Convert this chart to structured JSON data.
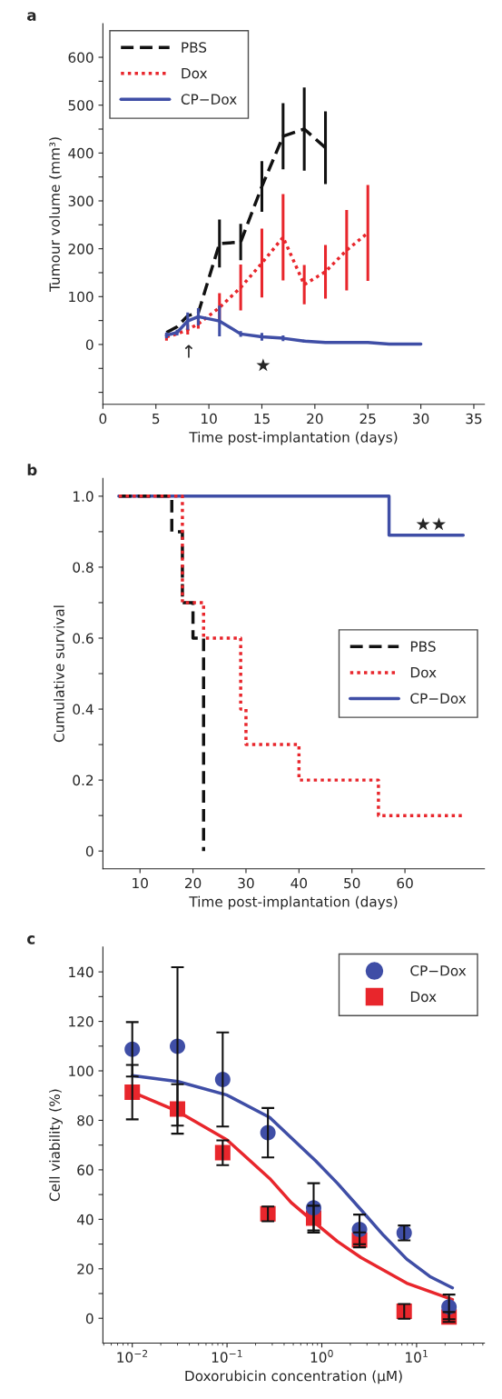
{
  "chart_data": [
    {
      "type": "line",
      "title": "a",
      "xlabel": "Time post-implantation (days)",
      "ylabel": "Tumour volume (mm³)",
      "xlim": [
        0,
        36
      ],
      "ylim": [
        -125,
        670
      ],
      "xticks": [
        0,
        5,
        10,
        15,
        20,
        25,
        30,
        35
      ],
      "yticks": [
        {
          "value": -100,
          "label": null
        },
        {
          "value": -50,
          "label": null
        },
        0,
        {
          "value": 50,
          "label": null
        },
        100,
        {
          "value": 150,
          "label": null
        },
        200,
        {
          "value": 250,
          "label": null
        },
        300,
        {
          "value": 350,
          "label": null
        },
        400,
        {
          "value": 450,
          "label": null
        },
        500,
        {
          "value": 550,
          "label": null
        },
        600
      ],
      "legend": "top left",
      "annotations": [
        "↑",
        "★"
      ],
      "series": [
        {
          "name": "PBS",
          "color": "#111111",
          "line_style": "dashed",
          "x": [
            6,
            7,
            8,
            9,
            11,
            13,
            15,
            17,
            19,
            21
          ],
          "values": [
            25,
            37,
            60,
            66,
            211,
            214,
            330,
            435,
            450,
            411
          ],
          "errors": [
            null,
            null,
            null,
            null,
            50,
            38,
            53,
            69,
            87,
            76
          ]
        },
        {
          "name": "Dox",
          "color": "#e8262c",
          "line_style": "dotted",
          "x": [
            6,
            7,
            8,
            9,
            11,
            13,
            15,
            17,
            19,
            21,
            23,
            25
          ],
          "values": [
            16,
            22,
            31,
            43,
            77,
            119,
            170,
            224,
            125,
            152,
            197,
            233
          ],
          "errors": [
            8,
            null,
            10,
            10,
            30,
            48,
            72,
            90,
            41,
            56,
            84,
            100
          ]
        },
        {
          "name": "CP−Dox",
          "color": "#3f4ea6",
          "line_style": "solid",
          "x": [
            6,
            7,
            8,
            9,
            11,
            13,
            15,
            17,
            19,
            21,
            23,
            25,
            27,
            30
          ],
          "values": [
            19,
            25,
            49,
            58,
            49,
            22,
            16,
            13,
            7,
            4,
            4,
            4,
            1,
            1
          ],
          "errors": [
            6,
            6,
            18,
            18,
            32,
            6,
            8,
            6,
            3,
            null,
            null,
            null,
            null,
            null
          ]
        }
      ]
    },
    {
      "type": "step",
      "title": "b",
      "xlabel": "Time post-implantation (days)",
      "ylabel": "Cumulative survival",
      "xlim": [
        3,
        75
      ],
      "ylim": [
        -0.05,
        1.05
      ],
      "xticks": [
        10,
        20,
        30,
        40,
        50,
        60
      ],
      "yticks": [
        {
          "value": 0,
          "label": "0"
        },
        {
          "value": 0.1,
          "label": null
        },
        {
          "value": 0.2,
          "label": "0.2"
        },
        {
          "value": 0.3,
          "label": null
        },
        {
          "value": 0.4,
          "label": "0.4"
        },
        {
          "value": 0.5,
          "label": null
        },
        {
          "value": 0.6,
          "label": "0.6"
        },
        {
          "value": 0.7,
          "label": null
        },
        {
          "value": 0.8,
          "label": "0.8"
        },
        {
          "value": 0.9,
          "label": null
        },
        {
          "value": 1.0,
          "label": "1.0"
        }
      ],
      "legend": "right",
      "annotations": [
        "★★"
      ],
      "series": [
        {
          "name": "CP−Dox",
          "color": "#3f4ea6",
          "line_style": "solid",
          "x": [
            6,
            57,
            71
          ],
          "values": [
            1,
            0.89,
            0.89
          ]
        },
        {
          "name": "PBS",
          "color": "#111111",
          "line_style": "dashed",
          "x": [
            6,
            16,
            18,
            20,
            22
          ],
          "values": [
            1,
            0.9,
            0.7,
            0.6,
            0
          ]
        },
        {
          "name": "Dox",
          "color": "#e8262c",
          "line_style": "dotted",
          "x": [
            6,
            18,
            22,
            29,
            30,
            40,
            55,
            71
          ],
          "values": [
            1,
            0.7,
            0.6,
            0.4,
            0.3,
            0.2,
            0.1,
            0.1
          ]
        }
      ]
    },
    {
      "type": "scatter",
      "title": "c",
      "xlabel": "Doxorubicin concentration (μM)",
      "ylabel": "Cell viability (%)",
      "log": "x",
      "xlim": [
        0.0049,
        52
      ],
      "ylim": [
        -10,
        150
      ],
      "xticks": [
        {
          "value": 0.01,
          "label": "10$^{−2}$"
        },
        {
          "value": 0.1,
          "label": "10$^{−1}$"
        },
        {
          "value": 1,
          "label": "10$^{0}$"
        },
        {
          "value": 10,
          "label": "10$^{1}$"
        }
      ],
      "yticks": [
        0,
        {
          "value": 10,
          "label": null
        },
        20,
        {
          "value": 30,
          "label": null
        },
        40,
        {
          "value": 50,
          "label": null
        },
        60,
        {
          "value": 70,
          "label": null
        },
        80,
        {
          "value": 90,
          "label": null
        },
        100,
        {
          "value": 110,
          "label": null
        },
        120,
        {
          "value": 130,
          "label": null
        },
        140
      ],
      "legend": "top right",
      "series": [
        {
          "name": "CP−Dox",
          "color": "#3f4ea6",
          "marker": "circle",
          "x": [
            0.01,
            0.03,
            0.09,
            0.27,
            0.82,
            2.5,
            7.4,
            22
          ],
          "values": [
            108.7,
            109.9,
            96.5,
            75,
            44.6,
            35.9,
            34.5,
            4.6
          ],
          "errors": [
            11,
            32,
            19,
            10,
            10,
            6,
            3,
            5
          ]
        },
        {
          "name": "Dox",
          "color": "#e8262c",
          "marker": "square",
          "x": [
            0.01,
            0.03,
            0.09,
            0.27,
            0.82,
            2.5,
            7.4,
            22
          ],
          "values": [
            91.4,
            84.6,
            66.9,
            42.2,
            40.5,
            31.7,
            2.8,
            0.5
          ],
          "errors": [
            11,
            10,
            5,
            3,
            5,
            3,
            3,
            2
          ]
        },
        {
          "type": "line",
          "color": "#3f4ea6",
          "x": [
            0.01,
            0.0303,
            0.1,
            0.282,
            0.857,
            1.46,
            2.6,
            4.49,
            7.87,
            13.8,
            23.9
          ],
          "values": [
            98.1,
            95.7,
            90.2,
            81.2,
            63.7,
            54.6,
            43.8,
            33.5,
            23.9,
            16.9,
            12.3
          ]
        },
        {
          "type": "line",
          "color": "#e8262c",
          "x": [
            0.01,
            0.0303,
            0.1,
            0.282,
            0.475,
            0.857,
            1.46,
            2.6,
            7.87,
            23.9
          ],
          "values": [
            91.4,
            83.6,
            72.1,
            56.5,
            46.8,
            38.4,
            31.1,
            24.5,
            14.2,
            7.6
          ]
        }
      ]
    }
  ]
}
